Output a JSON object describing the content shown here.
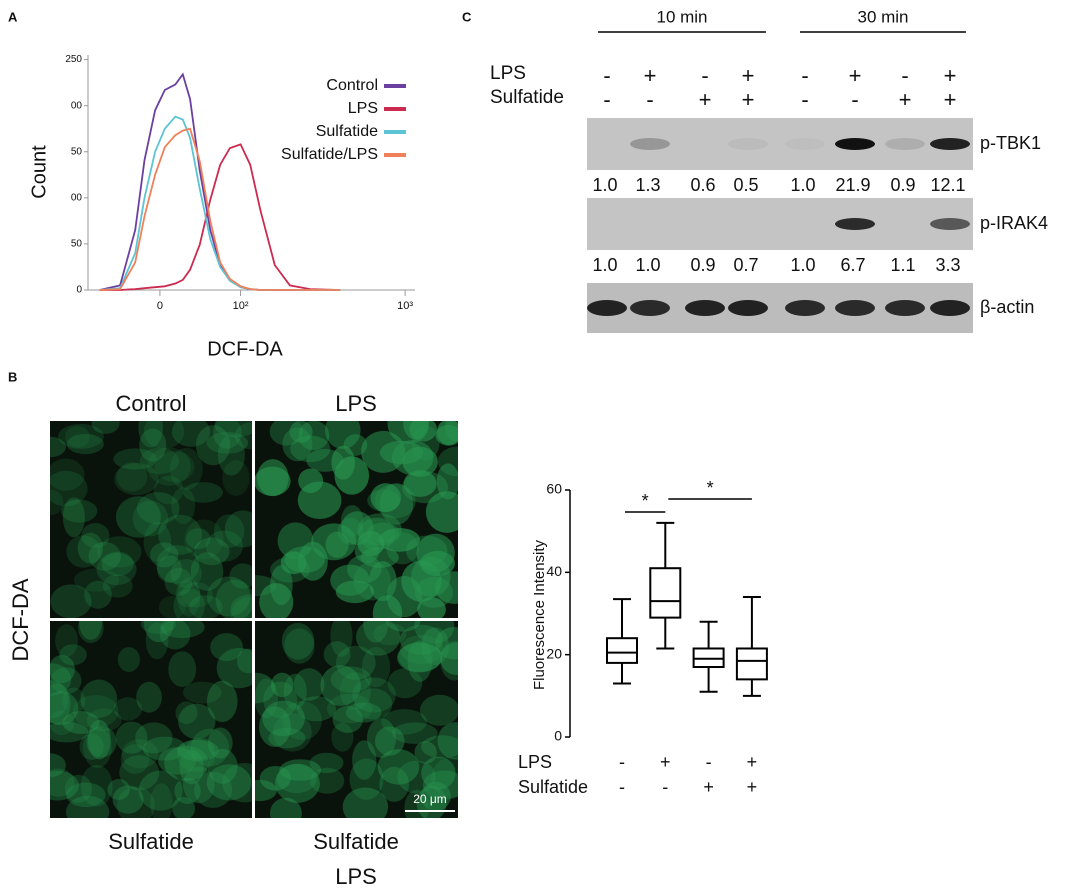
{
  "panel_labels": [
    "A",
    "B",
    "C"
  ],
  "chart_data": [
    {
      "type": "line",
      "y_label": "Count",
      "x_label": "DCF-DA",
      "xscale": "biexponential",
      "x": [
        -69,
        -43,
        -26,
        -16,
        -5,
        5,
        16,
        24,
        32,
        43,
        56,
        69,
        83,
        100,
        117,
        137,
        170,
        211,
        279,
        420
      ],
      "series": [
        {
          "name": "Control",
          "color": "#6b3fa0",
          "values": [
            0,
            5,
            65,
            141,
            195,
            217,
            223,
            234,
            207,
            130,
            65,
            27,
            11,
            3,
            1,
            0,
            0,
            0,
            0,
            0
          ]
        },
        {
          "name": "LPS",
          "color": "#cc2a4f",
          "values": [
            0,
            0,
            1,
            2,
            3,
            4,
            7,
            11,
            22,
            49,
            98,
            136,
            154,
            158,
            136,
            87,
            27,
            5,
            1,
            0
          ]
        },
        {
          "name": "Sulfatide",
          "color": "#5cc4d4",
          "values": [
            0,
            2,
            40,
            100,
            150,
            175,
            188,
            185,
            165,
            110,
            55,
            25,
            10,
            3,
            1,
            0,
            0,
            0,
            0,
            0
          ]
        },
        {
          "name": "Sulfatide/LPS",
          "color": "#f0805a",
          "values": [
            0,
            1,
            30,
            80,
            125,
            155,
            168,
            173,
            175,
            140,
            75,
            30,
            12,
            4,
            1,
            0,
            0,
            0,
            0,
            0
          ]
        }
      ],
      "xlim": [
        -86,
        1140
      ],
      "ylim": [
        0,
        255
      ],
      "xticks": [
        0,
        {
          "value": 100,
          "label": "10²"
        },
        {
          "value": 1000,
          "label": "10³"
        }
      ],
      "yticks": [
        {
          "value": 250,
          "label": "250"
        },
        {
          "value": 200,
          "label": "00"
        },
        {
          "value": 150,
          "label": "50"
        },
        {
          "value": 100,
          "label": "00"
        },
        {
          "value": 50,
          "label": "50"
        },
        0
      ],
      "legend": "upper right"
    },
    {
      "type": "box",
      "y_label": "Fluorescence Intensity",
      "ylim": [
        0,
        60
      ],
      "yticks": [
        0,
        20,
        40,
        60
      ],
      "boxes": [
        {
          "min": 13,
          "q1": 18,
          "median": 20.5,
          "q3": 24,
          "max": 33.5
        },
        {
          "min": 21.5,
          "q1": 29,
          "median": 33,
          "q3": 41,
          "max": 52
        },
        {
          "min": 11,
          "q1": 17,
          "median": 19,
          "q3": 21.5,
          "max": 28
        },
        {
          "min": 10,
          "q1": 14,
          "median": 18.5,
          "q3": 21.5,
          "max": 34
        }
      ],
      "conditions": [
        {
          "name": "LPS",
          "signs": [
            "-",
            "+",
            "-",
            "+"
          ]
        },
        {
          "name": "Sulfatide",
          "signs": [
            "-",
            "-",
            "+",
            "+"
          ]
        }
      ],
      "significance": [
        {
          "label": "*",
          "groups": [
            0,
            1
          ]
        },
        {
          "label": "*",
          "groups": [
            1,
            3
          ]
        }
      ]
    }
  ],
  "micrographs": {
    "stain_label": "DCF-DA",
    "tiles": [
      [
        "Control"
      ],
      [
        "LPS"
      ],
      [
        "Sulfatide"
      ],
      [
        "Sulfatide",
        "LPS"
      ]
    ],
    "scale_bar": "20 μm"
  },
  "blot": {
    "time_groups": [
      "10 min",
      "30 min"
    ],
    "conditions": [
      {
        "name": "LPS",
        "signs": [
          "-",
          "+",
          "-",
          "+",
          "-",
          "+",
          "-",
          "+"
        ]
      },
      {
        "name": "Sulfatide",
        "signs": [
          "-",
          "-",
          "+",
          "+",
          "-",
          "-",
          "+",
          "+"
        ]
      }
    ],
    "bands": [
      {
        "name": "p-TBK1",
        "quant": [
          "1.0",
          "1.3",
          "0.6",
          "0.5",
          "1.0",
          "21.9",
          "0.9",
          "12.1"
        ]
      },
      {
        "name": "p-IRAK4",
        "quant": [
          "1.0",
          "1.0",
          "0.9",
          "0.7",
          "1.0",
          "6.7",
          "1.1",
          "3.3"
        ]
      },
      {
        "name": "β-actin"
      }
    ]
  }
}
